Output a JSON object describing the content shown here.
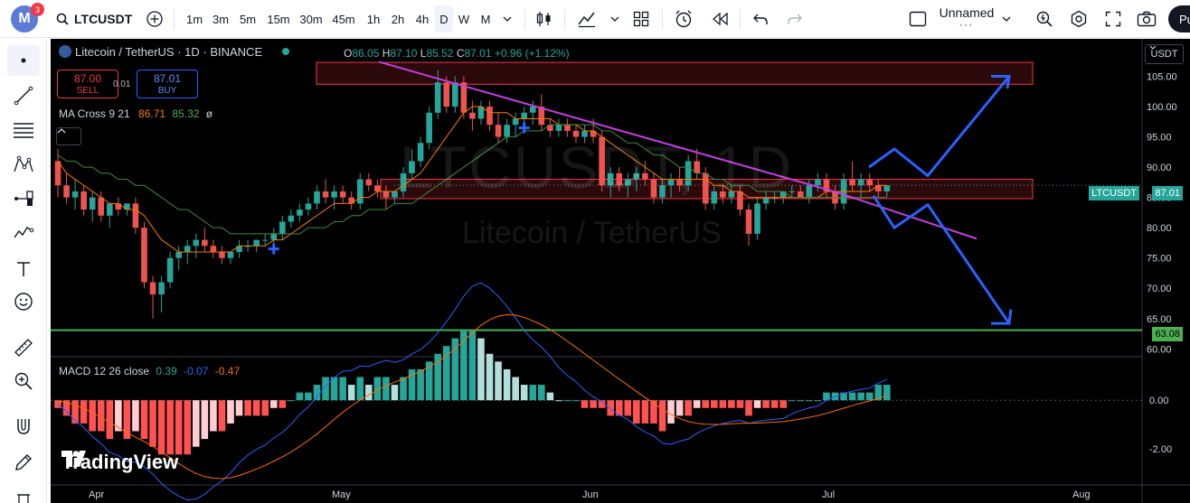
{
  "toolbar": {
    "avatar_letter": "M",
    "notification_count": "3",
    "symbol": "LTCUSDT",
    "intervals": [
      "1m",
      "3m",
      "5m",
      "15m",
      "30m",
      "45m",
      "1h",
      "2h",
      "4h",
      "D",
      "W",
      "M"
    ],
    "active_interval": "D",
    "layout_name": "Unnamed",
    "publish_label": "Pu"
  },
  "chart": {
    "title": "Litecoin / TetherUS · 1D · BINANCE",
    "ohlc": {
      "o_label": "O",
      "o": "86.05",
      "h_label": "H",
      "h": "87.10",
      "l_label": "L",
      "l": "85.52",
      "c_label": "C",
      "c": "87.01",
      "change": "+0.96 (+1.12%)"
    },
    "sell": {
      "price": "87.00",
      "label": "SELL"
    },
    "buy": {
      "price": "87.01",
      "label": "BUY"
    },
    "spread": "0.01",
    "ma_legend": {
      "name": "MA Cross 9 21",
      "v1": "86.71",
      "v2": "85.32",
      "extra": "ø"
    },
    "macd_legend": {
      "name": "MACD 12 26 close",
      "v1": "0.39",
      "v2": "-0.07",
      "v3": "-0.47"
    },
    "currency": "USDT",
    "watermark_symbol": "LTCUSDT, 1D",
    "watermark_name": "Litecoin / TetherUS",
    "brand": "TradingView",
    "price_ticks": [
      "105.00",
      "100.00",
      "95.00",
      "90.00",
      "85.00",
      "80.00",
      "75.00",
      "70.00",
      "65.00",
      "60.00"
    ],
    "macd_ticks": [
      "0.00",
      "-2.00"
    ],
    "date_ticks": [
      "Apr",
      "May",
      "Jun",
      "Jul",
      "Aug"
    ],
    "symbol_tag": "LTCUSDT",
    "last_price": "87.01",
    "support_price": "63.08",
    "colors": {
      "up": "#26a69a",
      "down": "#ef5350",
      "ma_fast": "#f57c00",
      "ma_slow": "#388e3c",
      "trendline": "#c040e0",
      "arrows": "#2962ff",
      "support": "#4caf50",
      "zone": "#f23645"
    }
  },
  "chart_data": {
    "type": "candlestick",
    "title": "Litecoin / TetherUS · 1D · BINANCE",
    "x_ticks": [
      "Apr",
      "May",
      "Jun",
      "Jul",
      "Aug"
    ],
    "y_ticks": [
      105,
      100,
      95,
      90,
      85,
      80,
      75,
      70,
      65,
      60
    ],
    "ylim": [
      59,
      110
    ],
    "candles_ohlc": [
      [
        91,
        93,
        85,
        87
      ],
      [
        87,
        89,
        84,
        85
      ],
      [
        85,
        88,
        83,
        86
      ],
      [
        86,
        87,
        82,
        83
      ],
      [
        83,
        86,
        81,
        85
      ],
      [
        85,
        86,
        81,
        82
      ],
      [
        82,
        84,
        80,
        84
      ],
      [
        84,
        85,
        82,
        83
      ],
      [
        83,
        84,
        82,
        84
      ],
      [
        84,
        85,
        79,
        80
      ],
      [
        80,
        81,
        70,
        71
      ],
      [
        71,
        72,
        65,
        69
      ],
      [
        69,
        72,
        66,
        71
      ],
      [
        71,
        76,
        70,
        75
      ],
      [
        75,
        77,
        73,
        76
      ],
      [
        76,
        78,
        74,
        77
      ],
      [
        77,
        79,
        75,
        78
      ],
      [
        78,
        80,
        76,
        77
      ],
      [
        77,
        78,
        75,
        76
      ],
      [
        76,
        77,
        74,
        75
      ],
      [
        75,
        76,
        74,
        76
      ],
      [
        76,
        78,
        75,
        77
      ],
      [
        77,
        78,
        76,
        77
      ],
      [
        77,
        78,
        76,
        78
      ],
      [
        78,
        79,
        77,
        78
      ],
      [
        78,
        80,
        77,
        79
      ],
      [
        79,
        82,
        78,
        81
      ],
      [
        81,
        83,
        80,
        82
      ],
      [
        82,
        84,
        81,
        83
      ],
      [
        83,
        85,
        82,
        84
      ],
      [
        84,
        87,
        83,
        86
      ],
      [
        86,
        88,
        84,
        85
      ],
      [
        85,
        87,
        83,
        86
      ],
      [
        86,
        87,
        84,
        85
      ],
      [
        85,
        86,
        83,
        84
      ],
      [
        84,
        89,
        83,
        88
      ],
      [
        88,
        89,
        86,
        87
      ],
      [
        87,
        88,
        85,
        86
      ],
      [
        86,
        87,
        83,
        85
      ],
      [
        85,
        86,
        84,
        86
      ],
      [
        86,
        90,
        85,
        89
      ],
      [
        89,
        93,
        88,
        91
      ],
      [
        91,
        95,
        90,
        94
      ],
      [
        94,
        100,
        93,
        99
      ],
      [
        99,
        106,
        98,
        104
      ],
      [
        104,
        105,
        99,
        100
      ],
      [
        100,
        105,
        99,
        104
      ],
      [
        104,
        105,
        98,
        99
      ],
      [
        99,
        101,
        96,
        98
      ],
      [
        98,
        101,
        97,
        100
      ],
      [
        100,
        101,
        96,
        97
      ],
      [
        97,
        99,
        94,
        95
      ],
      [
        95,
        98,
        94,
        97
      ],
      [
        97,
        99,
        95,
        98
      ],
      [
        98,
        100,
        96,
        99
      ],
      [
        99,
        101,
        97,
        100
      ],
      [
        100,
        102,
        96,
        97
      ],
      [
        97,
        98,
        95,
        96
      ],
      [
        96,
        98,
        95,
        97
      ],
      [
        97,
        98,
        95,
        96
      ],
      [
        96,
        97,
        94,
        95
      ],
      [
        95,
        97,
        94,
        96
      ],
      [
        96,
        98,
        94,
        95
      ],
      [
        95,
        96,
        86,
        87
      ],
      [
        87,
        90,
        85,
        89
      ],
      [
        89,
        90,
        86,
        87
      ],
      [
        87,
        89,
        85,
        88
      ],
      [
        88,
        90,
        86,
        89
      ],
      [
        89,
        91,
        87,
        88
      ],
      [
        88,
        89,
        84,
        85
      ],
      [
        85,
        88,
        84,
        87
      ],
      [
        87,
        89,
        85,
        88
      ],
      [
        88,
        90,
        86,
        87
      ],
      [
        87,
        92,
        86,
        91
      ],
      [
        91,
        93,
        88,
        89
      ],
      [
        89,
        90,
        83,
        84
      ],
      [
        84,
        87,
        83,
        86
      ],
      [
        86,
        87,
        84,
        85
      ],
      [
        85,
        87,
        84,
        86
      ],
      [
        86,
        87,
        82,
        83
      ],
      [
        83,
        84,
        77,
        79
      ],
      [
        79,
        85,
        78,
        84
      ],
      [
        84,
        86,
        83,
        85
      ],
      [
        85,
        86,
        84,
        85
      ],
      [
        85,
        86,
        84,
        86
      ],
      [
        86,
        87,
        85,
        86
      ],
      [
        86,
        87,
        85,
        85
      ],
      [
        85,
        88,
        84,
        87
      ],
      [
        87,
        89,
        86,
        88
      ],
      [
        88,
        89,
        85,
        86
      ],
      [
        86,
        87,
        83,
        84
      ],
      [
        84,
        89,
        83,
        88
      ],
      [
        88,
        91,
        86,
        87
      ],
      [
        87,
        89,
        85,
        88
      ],
      [
        88,
        89,
        86,
        87
      ],
      [
        87,
        88,
        85,
        86
      ],
      [
        86,
        87,
        85,
        87
      ]
    ],
    "series": [
      {
        "name": "MA 9",
        "values": [
          91,
          89,
          88,
          87,
          86,
          85,
          84,
          84,
          83,
          83,
          82,
          80,
          78,
          77,
          76,
          76,
          76,
          76,
          76,
          76,
          76,
          77,
          77,
          77,
          77,
          78,
          78,
          79,
          80,
          81,
          82,
          83,
          84,
          84,
          84,
          85,
          85,
          86,
          86,
          86,
          87,
          88,
          89,
          91,
          93,
          95,
          97,
          99,
          100,
          100,
          99,
          99,
          99,
          98,
          98,
          98,
          98,
          98,
          97,
          97,
          97,
          96,
          96,
          95,
          94,
          93,
          92,
          91,
          90,
          89,
          88,
          88,
          88,
          88,
          88,
          88,
          87,
          87,
          86,
          86,
          85,
          85,
          85,
          85,
          85,
          85,
          85,
          85,
          85,
          86,
          86,
          86,
          86,
          86,
          86,
          87,
          87
        ]
      },
      {
        "name": "MA 21",
        "values": [
          92,
          91,
          91,
          90,
          90,
          89,
          89,
          88,
          88,
          87,
          87,
          86,
          85,
          84,
          83,
          83,
          82,
          81,
          80,
          80,
          79,
          79,
          79,
          79,
          79,
          79,
          79,
          79,
          79,
          80,
          80,
          80,
          81,
          81,
          82,
          82,
          83,
          83,
          83,
          84,
          84,
          84,
          85,
          86,
          87,
          88,
          89,
          90,
          91,
          92,
          93,
          94,
          95,
          95,
          96,
          96,
          96,
          97,
          97,
          97,
          97,
          97,
          97,
          96,
          96,
          95,
          94,
          94,
          93,
          92,
          92,
          91,
          90,
          90,
          89,
          89,
          88,
          88,
          87,
          87,
          87,
          86,
          86,
          86,
          86,
          85,
          85,
          85,
          85,
          85,
          85,
          85,
          85,
          85,
          85,
          85,
          85
        ]
      }
    ],
    "macd": {
      "zero_line": 0,
      "ylim": [
        -3.5,
        1.8
      ],
      "ticks": [
        0,
        -2
      ]
    }
  }
}
